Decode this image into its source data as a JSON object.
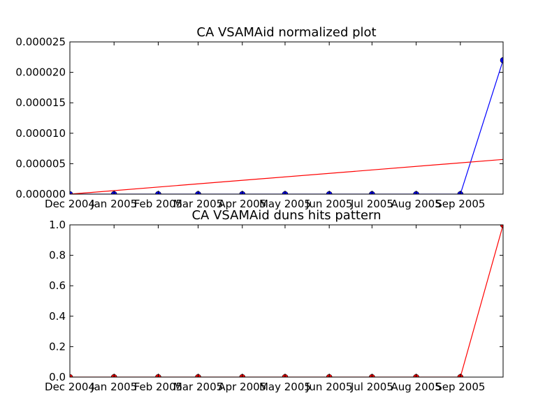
{
  "chart_data": [
    {
      "type": "line",
      "title": "CA VSAMAid normalized plot",
      "xlabel": "",
      "ylabel": "",
      "x_tick_labels": [
        "Dec 2004",
        "Jan 2005",
        "Feb 2005",
        "Mar 2005",
        "Apr 2005",
        "May 2005",
        "Jun 2005",
        "Jul 2005",
        "Aug 2005",
        "Sep 2005"
      ],
      "y_tick_labels": [
        "0.000000",
        "0.000005",
        "0.000010",
        "0.000015",
        "0.000020",
        "0.000025"
      ],
      "xlim": [
        "2004-12-01",
        "2005-10-01"
      ],
      "ylim": [
        0,
        2.5e-05
      ],
      "grid": false,
      "series": [
        {
          "color": "#0000ff",
          "marker": "circle",
          "x": [
            "2004-12-01",
            "2005-01-01",
            "2005-02-01",
            "2005-03-01",
            "2005-04-01",
            "2005-05-01",
            "2005-06-01",
            "2005-07-01",
            "2005-08-01",
            "2005-09-01",
            "2005-10-01"
          ],
          "values": [
            0,
            0,
            0,
            0,
            0,
            0,
            0,
            0,
            0,
            0,
            2.2e-05
          ]
        },
        {
          "color": "#ff0000",
          "marker": "none",
          "x": [
            "2004-12-01",
            "2005-10-01"
          ],
          "values": [
            0,
            5.7e-06
          ]
        }
      ]
    },
    {
      "type": "line",
      "title": "CA VSAMAid duns hits pattern",
      "xlabel": "",
      "ylabel": "",
      "x_tick_labels": [
        "Dec 2004",
        "Jan 2005",
        "Feb 2005",
        "Mar 2005",
        "Apr 2005",
        "May 2005",
        "Jun 2005",
        "Jul 2005",
        "Aug 2005",
        "Sep 2005"
      ],
      "y_tick_labels": [
        "0.0",
        "0.2",
        "0.4",
        "0.6",
        "0.8",
        "1.0"
      ],
      "xlim": [
        "2004-12-01",
        "2005-10-01"
      ],
      "ylim": [
        0,
        1
      ],
      "grid": false,
      "series": [
        {
          "color": "#ff0000",
          "marker": "circle",
          "x": [
            "2004-12-01",
            "2005-01-01",
            "2005-02-01",
            "2005-03-01",
            "2005-04-01",
            "2005-05-01",
            "2005-06-01",
            "2005-07-01",
            "2005-08-01",
            "2005-09-01",
            "2005-10-01"
          ],
          "values": [
            0,
            0,
            0,
            0,
            0,
            0,
            0,
            0,
            0,
            0,
            1
          ]
        }
      ]
    }
  ]
}
